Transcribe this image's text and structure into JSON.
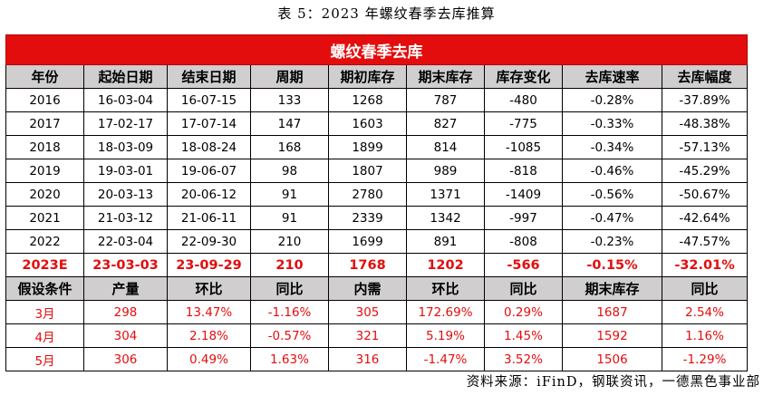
{
  "caption": "表 5：2023 年螺纹春季去库推算",
  "table_title": "螺纹春季去库",
  "headers": [
    "年份",
    "起始日期",
    "结束日期",
    "周期",
    "期初库存",
    "期末库存",
    "库存变化",
    "去库速率",
    "去库幅度"
  ],
  "rows": [
    [
      "2016",
      "16-03-04",
      "16-07-15",
      "133",
      "1268",
      "787",
      "-480",
      "-0.28%",
      "-37.89%"
    ],
    [
      "2017",
      "17-02-17",
      "17-07-14",
      "147",
      "1603",
      "827",
      "-775",
      "-0.33%",
      "-48.38%"
    ],
    [
      "2018",
      "18-03-09",
      "18-08-24",
      "168",
      "1899",
      "814",
      "-1085",
      "-0.34%",
      "-57.13%"
    ],
    [
      "2019",
      "19-03-01",
      "19-06-07",
      "98",
      "1807",
      "989",
      "-818",
      "-0.46%",
      "-45.29%"
    ],
    [
      "2020",
      "20-03-13",
      "20-06-12",
      "91",
      "2780",
      "1371",
      "-1409",
      "-0.56%",
      "-50.67%"
    ],
    [
      "2021",
      "21-03-12",
      "21-06-11",
      "91",
      "2339",
      "1342",
      "-997",
      "-0.47%",
      "-42.64%"
    ],
    [
      "2022",
      "22-03-04",
      "22-09-30",
      "210",
      "1699",
      "891",
      "-808",
      "-0.23%",
      "-47.57%"
    ]
  ],
  "forecast_row": [
    "2023E",
    "23-03-03",
    "23-09-29",
    "210",
    "1768",
    "1202",
    "-566",
    "-0.15%",
    "-32.01%"
  ],
  "assumption_headers": [
    "假设条件",
    "产量",
    "环比",
    "同比",
    "内需",
    "环比",
    "同比",
    "期末库存",
    "同比"
  ],
  "assumption_rows": [
    [
      "3月",
      "298",
      "13.47%",
      "-1.16%",
      "305",
      "172.69%",
      "0.29%",
      "1687",
      "2.54%"
    ],
    [
      "4月",
      "304",
      "2.18%",
      "-0.57%",
      "321",
      "5.19%",
      "1.45%",
      "1592",
      "1.16%"
    ],
    [
      "5月",
      "306",
      "0.49%",
      "1.63%",
      "316",
      "-1.47%",
      "3.52%",
      "1506",
      "-1.29%"
    ]
  ],
  "source": "资料来源：iFinD，钢联资讯，一德黑色事业部",
  "colors": {
    "title_bg": "#e30d0d",
    "header_bg": "#d0cece",
    "highlight_text": "#e30d0d"
  }
}
